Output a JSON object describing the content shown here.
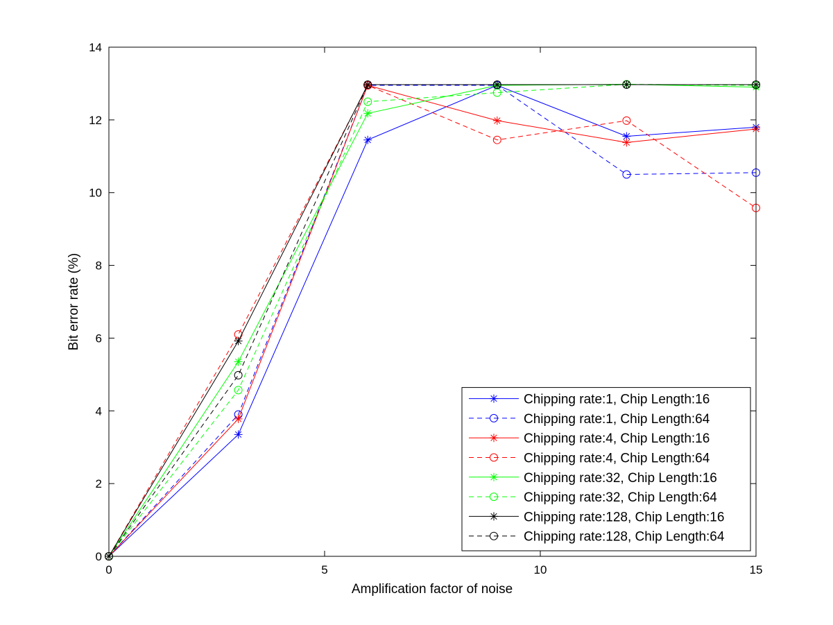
{
  "chart_data": {
    "type": "line",
    "title": "",
    "xlabel": "Amplification factor of noise",
    "ylabel": "Bit error rate (%)",
    "xlim": [
      0,
      15
    ],
    "ylim": [
      0,
      14
    ],
    "xticks": [
      0,
      5,
      10,
      15
    ],
    "yticks": [
      0,
      2,
      4,
      6,
      8,
      10,
      12,
      14
    ],
    "grid": false,
    "legend_position": "bottom-right",
    "x": [
      0,
      3,
      6,
      9,
      12,
      15
    ],
    "series": [
      {
        "name": "Chipping rate:1, Chip Length:16",
        "color": "#0000ff",
        "line": "solid",
        "marker": "asterisk",
        "values": [
          0,
          3.35,
          11.45,
          12.95,
          11.55,
          11.8
        ]
      },
      {
        "name": "Chipping rate:1, Chip Length:64",
        "color": "#0000ff",
        "line": "dashed",
        "marker": "circle",
        "values": [
          0,
          3.9,
          12.95,
          12.95,
          10.5,
          10.55
        ]
      },
      {
        "name": "Chipping rate:4, Chip Length:16",
        "color": "#ff0000",
        "line": "solid",
        "marker": "asterisk",
        "values": [
          0,
          3.78,
          12.95,
          11.98,
          11.38,
          11.75
        ]
      },
      {
        "name": "Chipping rate:4, Chip Length:64",
        "color": "#ff0000",
        "line": "dashed",
        "marker": "circle",
        "values": [
          0,
          6.1,
          12.95,
          11.45,
          11.98,
          9.58
        ]
      },
      {
        "name": "Chipping rate:32, Chip Length:16",
        "color": "#00ff00",
        "line": "solid",
        "marker": "asterisk",
        "values": [
          0,
          5.35,
          12.18,
          12.95,
          12.98,
          12.9
        ]
      },
      {
        "name": "Chipping rate:32, Chip Length:64",
        "color": "#00ff00",
        "line": "dashed",
        "marker": "circle",
        "values": [
          0,
          4.57,
          12.5,
          12.75,
          12.98,
          12.95
        ]
      },
      {
        "name": "Chipping rate:128, Chip Length:16",
        "color": "#000000",
        "line": "solid",
        "marker": "asterisk",
        "values": [
          0,
          5.92,
          12.97,
          12.97,
          12.97,
          12.97
        ]
      },
      {
        "name": "Chipping rate:128, Chip Length:64",
        "color": "#000000",
        "line": "dashed",
        "marker": "circle",
        "values": [
          0,
          4.98,
          12.97,
          12.97,
          12.97,
          12.97
        ]
      }
    ]
  }
}
